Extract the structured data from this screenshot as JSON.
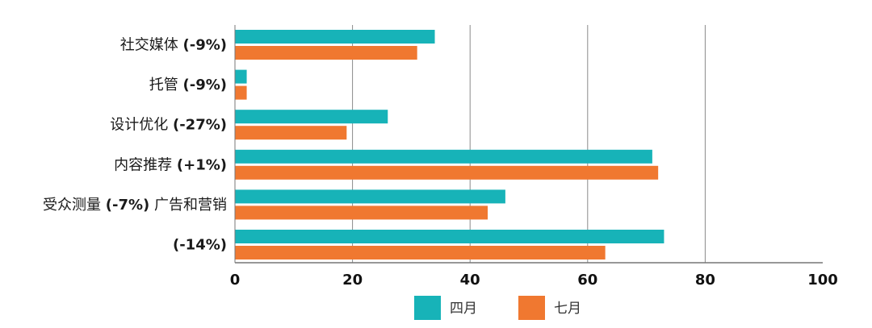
{
  "chart_data": {
    "type": "bar",
    "orientation": "horizontal",
    "categories": [
      {
        "name": "社交媒体",
        "change": "(-9%)"
      },
      {
        "name": "托管",
        "change": "(-9%)"
      },
      {
        "name": "设计优化",
        "change": "(-27%)"
      },
      {
        "name": "内容推荐",
        "change": "(+1%)"
      },
      {
        "name": "受众测量",
        "change": "(-7%)",
        "suffix": "广告和营销"
      },
      {
        "name": "",
        "change": "(-14%)"
      }
    ],
    "series": [
      {
        "name": "四月",
        "color": "#17b3b8",
        "values": [
          34,
          2,
          26,
          71,
          46,
          73
        ]
      },
      {
        "name": "七月",
        "color": "#f07830",
        "values": [
          31,
          2,
          19,
          72,
          43,
          63
        ]
      }
    ],
    "xlim": [
      0,
      100
    ],
    "xticks": [
      "0",
      "20",
      "40",
      "60",
      "80",
      "100"
    ],
    "grid": "vertical",
    "legend": "bottom-center"
  }
}
